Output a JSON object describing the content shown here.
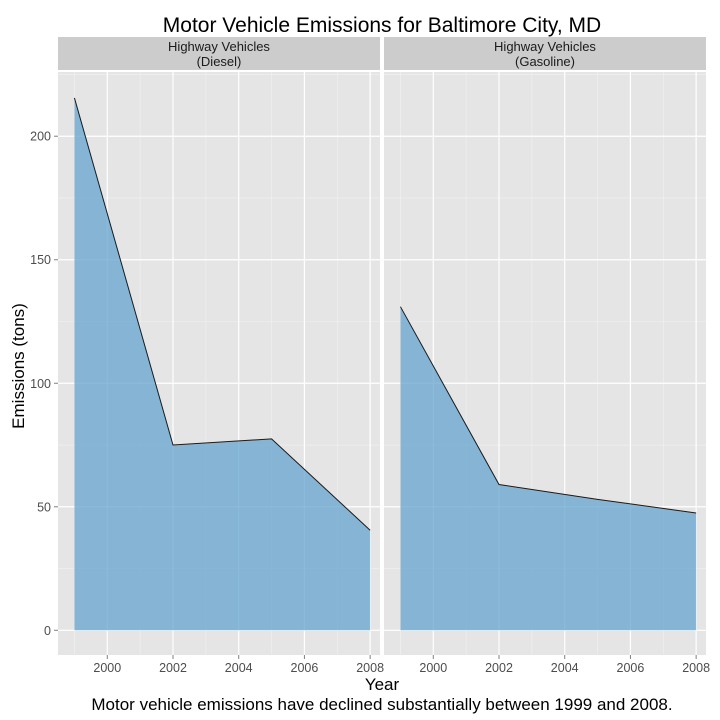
{
  "chart_data": {
    "type": "area",
    "title": "Motor Vehicle Emissions for Baltimore City, MD",
    "xlabel": "Year",
    "ylabel": "Emissions (tons)",
    "caption": "Motor vehicle emissions have declined substantially between 1999 and 2008.",
    "xlim": [
      1998.5,
      2008.3
    ],
    "ylim": [
      -10,
      226
    ],
    "x_ticks": [
      2000,
      2002,
      2004,
      2006,
      2008
    ],
    "y_ticks": [
      0,
      50,
      100,
      150,
      200
    ],
    "grid": true,
    "fill_color": "#6aa6d0",
    "panels": [
      {
        "strip_line1": "Highway Vehicles",
        "strip_line2": "(Diesel)",
        "x": [
          1999,
          2002,
          2005,
          2008
        ],
        "values": [
          215.5,
          75,
          77.5,
          40.5
        ]
      },
      {
        "strip_line1": "Highway Vehicles",
        "strip_line2": "(Gasoline)",
        "x": [
          1999,
          2002,
          2005,
          2008
        ],
        "values": [
          131,
          59,
          53,
          47.5
        ]
      }
    ]
  }
}
